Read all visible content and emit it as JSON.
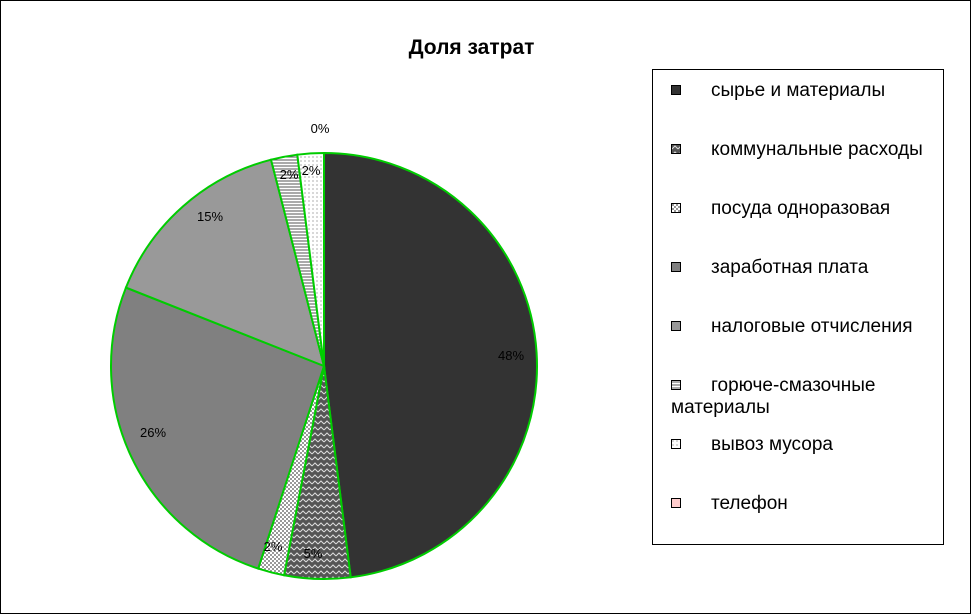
{
  "chart_data": {
    "type": "pie",
    "title": "Доля затрат",
    "categories": [
      "сырье и материалы",
      "коммунальные расходы",
      "посуда одноразовая",
      "заработная плата",
      "налоговые отчисления",
      "горюче-смазочные материалы",
      "вывоз мусора",
      "телефон"
    ],
    "values": [
      48,
      5,
      2,
      26,
      15,
      2,
      2,
      0
    ],
    "data_labels": [
      "48%",
      "5%",
      "2%",
      "26%",
      "15%",
      "2%",
      "2%",
      "0%"
    ],
    "slice_colors": [
      "#333333",
      "#555555",
      "#eeeeee",
      "#808080",
      "#999999",
      "#ffffff",
      "#ffffff",
      "#ffcccc"
    ],
    "slice_patterns": [
      "solid",
      "zigzag",
      "checker",
      "solid",
      "solid",
      "hlines",
      "dots",
      "solid"
    ],
    "slice_border_color": "#00cc00",
    "legend_position": "right"
  }
}
